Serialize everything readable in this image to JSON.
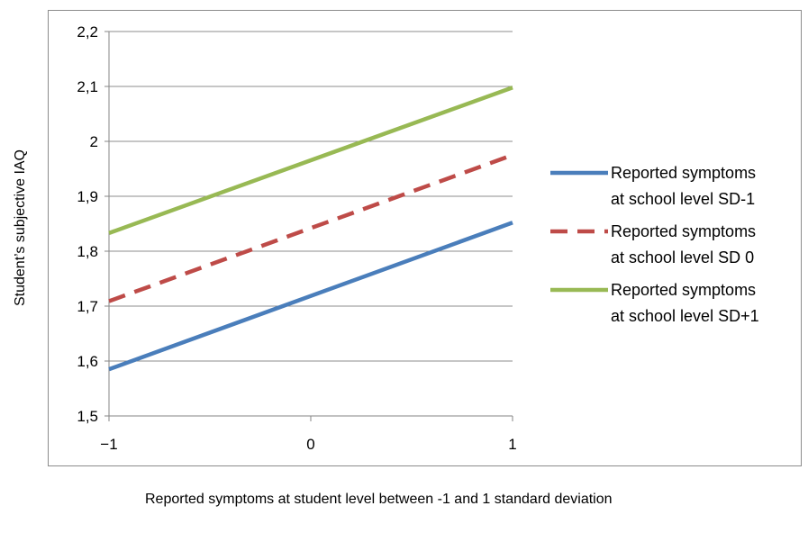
{
  "chart_data": {
    "type": "line",
    "xlabel": "Reported symptoms at student level between -1 and 1 standard deviation",
    "ylabel": "Student’s subjective IAQ",
    "xlim": [
      -1,
      1
    ],
    "ylim": [
      1.5,
      2.2
    ],
    "x_ticks": [
      -1,
      0,
      1
    ],
    "x_tick_labels": [
      "−1",
      "0",
      "1"
    ],
    "y_ticks": [
      1.5,
      1.6,
      1.7,
      1.8,
      1.9,
      2.0,
      2.1,
      2.2
    ],
    "y_tick_labels": [
      "1,5",
      "1,6",
      "1,7",
      "1,8",
      "1,9",
      "2",
      "2,1",
      "2,2"
    ],
    "grid": true,
    "legend_position": "right",
    "series": [
      {
        "name": [
          "Reported symptoms",
          "at school level SD-1"
        ],
        "color": "#4a7ebb",
        "style": "solid",
        "x": [
          -1,
          1
        ],
        "y": [
          1.585,
          1.852
        ]
      },
      {
        "name": [
          "Reported symptoms",
          "at school level SD 0"
        ],
        "color": "#be4b48",
        "style": "dashed",
        "x": [
          -1,
          1
        ],
        "y": [
          1.709,
          1.975
        ]
      },
      {
        "name": [
          "Reported symptoms",
          "at school level SD+1"
        ],
        "color": "#98b954",
        "style": "solid",
        "x": [
          -1,
          1
        ],
        "y": [
          1.833,
          2.098
        ]
      }
    ]
  }
}
